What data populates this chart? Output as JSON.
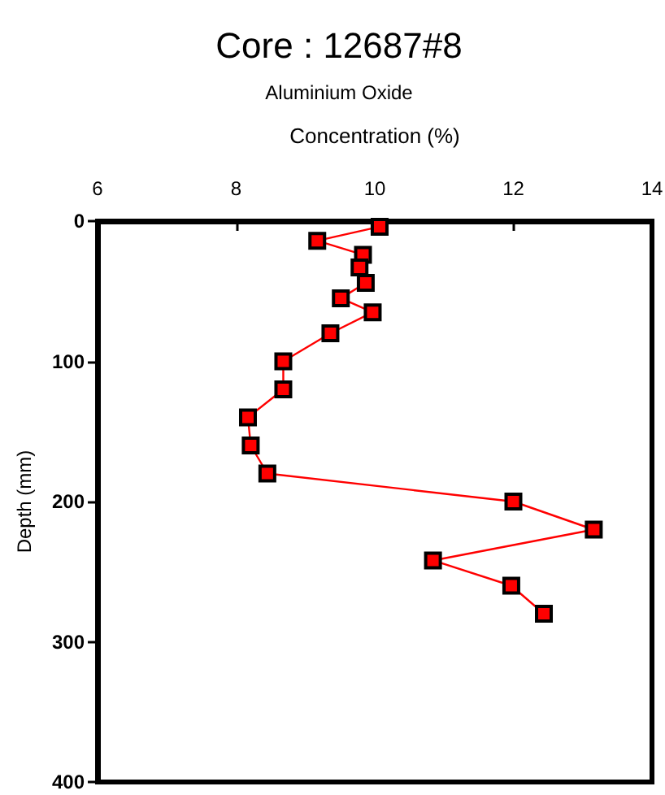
{
  "chart_data": {
    "type": "line",
    "title": "Core : 12687#8",
    "subtitle": "Aluminium Oxide",
    "xlabel": "Concentration (%)",
    "ylabel": "Depth (mm)",
    "x": [
      10.07,
      9.17,
      9.83,
      9.78,
      9.87,
      9.51,
      9.97,
      9.36,
      8.68,
      8.68,
      8.17,
      8.21,
      8.45,
      12.0,
      13.16,
      10.84,
      11.97,
      12.44
    ],
    "series": [
      {
        "color": "#ff0000",
        "values": [
          4,
          14,
          24,
          33,
          44,
          55,
          65,
          80,
          100,
          120,
          140,
          160,
          180,
          200,
          220,
          242,
          260,
          280
        ]
      }
    ],
    "xlim": [
      6,
      14
    ],
    "xticks": [
      6,
      8,
      10,
      12,
      14
    ],
    "ylim": [
      400,
      0
    ],
    "yticks": [
      0,
      100,
      200,
      300,
      400
    ],
    "grid": false,
    "marker": "square",
    "line_style": "solid"
  }
}
